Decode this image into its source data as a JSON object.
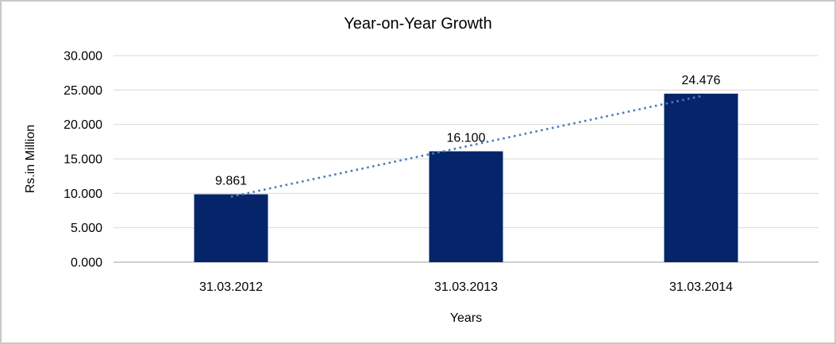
{
  "chart_data": {
    "type": "bar",
    "title": "Year-on-Year Growth",
    "xlabel": "Years",
    "ylabel": "Rs.in Million",
    "categories": [
      "31.03.2012",
      "31.03.2013",
      "31.03.2014"
    ],
    "values": [
      9.861,
      16.1,
      24.476
    ],
    "value_labels": [
      "9.861",
      "16.100",
      "24.476"
    ],
    "yticks": [
      0,
      5,
      10,
      15,
      20,
      25,
      30
    ],
    "ytick_labels": [
      "0.000",
      "5.000",
      "10.000",
      "15.000",
      "20.000",
      "25.000",
      "30.000"
    ],
    "ylim": [
      0,
      30
    ],
    "grid": true,
    "legend": "none",
    "trendline": {
      "kind": "linear",
      "style": "dotted"
    },
    "colors": {
      "bar": "#062469",
      "trendline": "#4A7EBB",
      "gridline": "#D9D9D9",
      "axis_line": "#BFBFBF",
      "text": "#000000",
      "frame_border": "#C9C9C9",
      "background": "#FFFFFF"
    }
  }
}
